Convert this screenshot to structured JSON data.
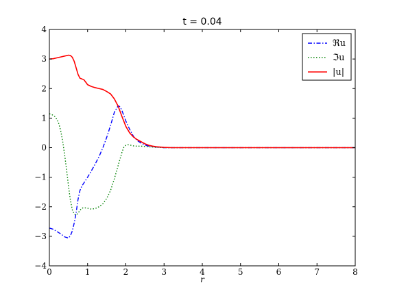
{
  "chart_data": {
    "type": "line",
    "title": "t = 0.04",
    "xlabel": "r",
    "ylabel": "",
    "xlim": [
      0,
      8
    ],
    "ylim": [
      -4,
      4
    ],
    "xticks": [
      "0",
      "1",
      "2",
      "3",
      "4",
      "5",
      "6",
      "7",
      "8"
    ],
    "yticks": [
      "−4",
      "−3",
      "−2",
      "−1",
      "0",
      "1",
      "2",
      "3",
      "4"
    ],
    "grid": false,
    "legend_position": "top-right",
    "series": [
      {
        "name": "ℜu",
        "color": "#0000ff",
        "dash": "dashdot",
        "points": [
          [
            0,
            -2.72
          ],
          [
            0.1,
            -2.76
          ],
          [
            0.2,
            -2.84
          ],
          [
            0.3,
            -2.92
          ],
          [
            0.4,
            -3.02
          ],
          [
            0.5,
            -3.06
          ],
          [
            0.55,
            -2.98
          ],
          [
            0.6,
            -2.82
          ],
          [
            0.65,
            -2.55
          ],
          [
            0.7,
            -2.2
          ],
          [
            0.75,
            -1.75
          ],
          [
            0.8,
            -1.45
          ],
          [
            0.85,
            -1.3
          ],
          [
            0.9,
            -1.2
          ],
          [
            1.0,
            -1.0
          ],
          [
            1.1,
            -0.78
          ],
          [
            1.2,
            -0.55
          ],
          [
            1.3,
            -0.3
          ],
          [
            1.4,
            0.0
          ],
          [
            1.5,
            0.35
          ],
          [
            1.6,
            0.75
          ],
          [
            1.7,
            1.2
          ],
          [
            1.8,
            1.42
          ],
          [
            1.85,
            1.38
          ],
          [
            1.9,
            1.25
          ],
          [
            2.0,
            0.9
          ],
          [
            2.1,
            0.62
          ],
          [
            2.2,
            0.38
          ],
          [
            2.3,
            0.24
          ],
          [
            2.4,
            0.15
          ],
          [
            2.5,
            0.09
          ],
          [
            2.6,
            0.05
          ],
          [
            2.8,
            0.02
          ],
          [
            3.0,
            0.0
          ],
          [
            4,
            0
          ],
          [
            5,
            0
          ],
          [
            6,
            0
          ],
          [
            7,
            0
          ],
          [
            8,
            0
          ]
        ]
      },
      {
        "name": "ℑu",
        "color": "#008000",
        "dash": "dotted",
        "points": [
          [
            0,
            1.15
          ],
          [
            0.05,
            1.12
          ],
          [
            0.1,
            1.1
          ],
          [
            0.15,
            1.05
          ],
          [
            0.2,
            0.95
          ],
          [
            0.25,
            0.8
          ],
          [
            0.3,
            0.55
          ],
          [
            0.35,
            0.2
          ],
          [
            0.4,
            -0.25
          ],
          [
            0.45,
            -0.75
          ],
          [
            0.5,
            -1.3
          ],
          [
            0.55,
            -1.78
          ],
          [
            0.6,
            -2.1
          ],
          [
            0.65,
            -2.25
          ],
          [
            0.7,
            -2.28
          ],
          [
            0.75,
            -2.22
          ],
          [
            0.8,
            -2.12
          ],
          [
            0.85,
            -2.05
          ],
          [
            0.9,
            -2.03
          ],
          [
            1.0,
            -2.05
          ],
          [
            1.1,
            -2.08
          ],
          [
            1.2,
            -2.06
          ],
          [
            1.3,
            -2.0
          ],
          [
            1.4,
            -1.9
          ],
          [
            1.5,
            -1.72
          ],
          [
            1.6,
            -1.45
          ],
          [
            1.7,
            -1.05
          ],
          [
            1.8,
            -0.6
          ],
          [
            1.9,
            -0.15
          ],
          [
            1.95,
            0.02
          ],
          [
            2.0,
            0.08
          ],
          [
            2.05,
            0.1
          ],
          [
            2.1,
            0.09
          ],
          [
            2.2,
            0.06
          ],
          [
            2.3,
            0.05
          ],
          [
            2.4,
            0.05
          ],
          [
            2.5,
            0.04
          ],
          [
            2.6,
            0.03
          ],
          [
            2.8,
            0.01
          ],
          [
            3.0,
            0.0
          ],
          [
            4,
            0
          ],
          [
            5,
            0
          ],
          [
            6,
            0
          ],
          [
            7,
            0
          ],
          [
            8,
            0
          ]
        ]
      },
      {
        "name": "|u|",
        "color": "#ff0000",
        "dash": "solid",
        "points": [
          [
            0,
            3.0
          ],
          [
            0.1,
            3.01
          ],
          [
            0.2,
            3.04
          ],
          [
            0.3,
            3.07
          ],
          [
            0.4,
            3.1
          ],
          [
            0.5,
            3.13
          ],
          [
            0.55,
            3.12
          ],
          [
            0.6,
            3.06
          ],
          [
            0.65,
            2.92
          ],
          [
            0.7,
            2.7
          ],
          [
            0.75,
            2.48
          ],
          [
            0.8,
            2.35
          ],
          [
            0.9,
            2.3
          ],
          [
            0.95,
            2.22
          ],
          [
            1.0,
            2.13
          ],
          [
            1.1,
            2.07
          ],
          [
            1.2,
            2.03
          ],
          [
            1.3,
            2.0
          ],
          [
            1.4,
            1.97
          ],
          [
            1.5,
            1.9
          ],
          [
            1.6,
            1.82
          ],
          [
            1.7,
            1.65
          ],
          [
            1.8,
            1.4
          ],
          [
            1.9,
            1.05
          ],
          [
            2.0,
            0.72
          ],
          [
            2.1,
            0.5
          ],
          [
            2.2,
            0.36
          ],
          [
            2.3,
            0.27
          ],
          [
            2.4,
            0.2
          ],
          [
            2.5,
            0.13
          ],
          [
            2.6,
            0.08
          ],
          [
            2.7,
            0.05
          ],
          [
            2.8,
            0.03
          ],
          [
            3.0,
            0.01
          ],
          [
            3.2,
            0.0
          ],
          [
            4,
            0
          ],
          [
            5,
            0
          ],
          [
            6,
            0
          ],
          [
            7,
            0
          ],
          [
            8,
            0
          ]
        ]
      }
    ]
  }
}
